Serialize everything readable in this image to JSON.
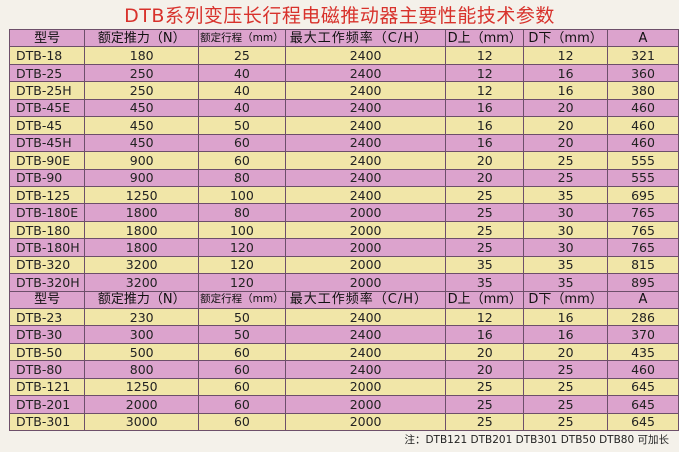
{
  "title": "DTB系列变压长行程电磁推动器主要性能技术参数",
  "header": [
    "型号",
    "额定推力（N）",
    "额定行程（mm）",
    "最大工作频率（C/H）",
    "D上（mm）",
    "D下（mm）",
    "A"
  ],
  "group1": [
    [
      "DTB-18",
      "180",
      "25",
      "2400",
      "12",
      "12",
      "321"
    ],
    [
      "DTB-25",
      "250",
      "40",
      "2400",
      "12",
      "16",
      "360"
    ],
    [
      "DTB-25H",
      "250",
      "40",
      "2400",
      "12",
      "16",
      "380"
    ],
    [
      "DTB-45E",
      "450",
      "40",
      "2400",
      "16",
      "20",
      "460"
    ],
    [
      "DTB-45",
      "450",
      "50",
      "2400",
      "16",
      "20",
      "460"
    ],
    [
      "DTB-45H",
      "450",
      "60",
      "2400",
      "16",
      "20",
      "460"
    ],
    [
      "DTB-90E",
      "900",
      "60",
      "2400",
      "20",
      "25",
      "555"
    ],
    [
      "DTB-90",
      "900",
      "80",
      "2400",
      "20",
      "25",
      "555"
    ],
    [
      "DTB-125",
      "1250",
      "100",
      "2400",
      "25",
      "35",
      "695"
    ],
    [
      "DTB-180E",
      "1800",
      "80",
      "2000",
      "25",
      "30",
      "765"
    ],
    [
      "DTB-180",
      "1800",
      "100",
      "2000",
      "25",
      "30",
      "765"
    ],
    [
      "DTB-180H",
      "1800",
      "120",
      "2000",
      "25",
      "30",
      "765"
    ],
    [
      "DTB-320",
      "3200",
      "120",
      "2000",
      "35",
      "35",
      "815"
    ],
    [
      "DTB-320H",
      "3200",
      "120",
      "2000",
      "35",
      "35",
      "895"
    ]
  ],
  "group2": [
    [
      "DTB-23",
      "230",
      "50",
      "2400",
      "12",
      "16",
      "286"
    ],
    [
      "DTB-30",
      "300",
      "50",
      "2400",
      "16",
      "16",
      "370"
    ],
    [
      "DTB-50",
      "500",
      "60",
      "2400",
      "20",
      "20",
      "435"
    ],
    [
      "DTB-80",
      "800",
      "60",
      "2400",
      "20",
      "25",
      "460"
    ],
    [
      "DTB-121",
      "1250",
      "60",
      "2000",
      "25",
      "25",
      "645"
    ],
    [
      "DTB-201",
      "2000",
      "60",
      "2000",
      "25",
      "25",
      "645"
    ],
    [
      "DTB-301",
      "3000",
      "60",
      "2000",
      "25",
      "25",
      "645"
    ]
  ],
  "note": "注：DTB121  DTB201  DTB301  DTB50  DTB80 可加长",
  "colors": {
    "title": "#d8322c",
    "pink_row": "#dca3cd",
    "cream_row": "#f1e6a8",
    "border": "#6d4f6a"
  }
}
